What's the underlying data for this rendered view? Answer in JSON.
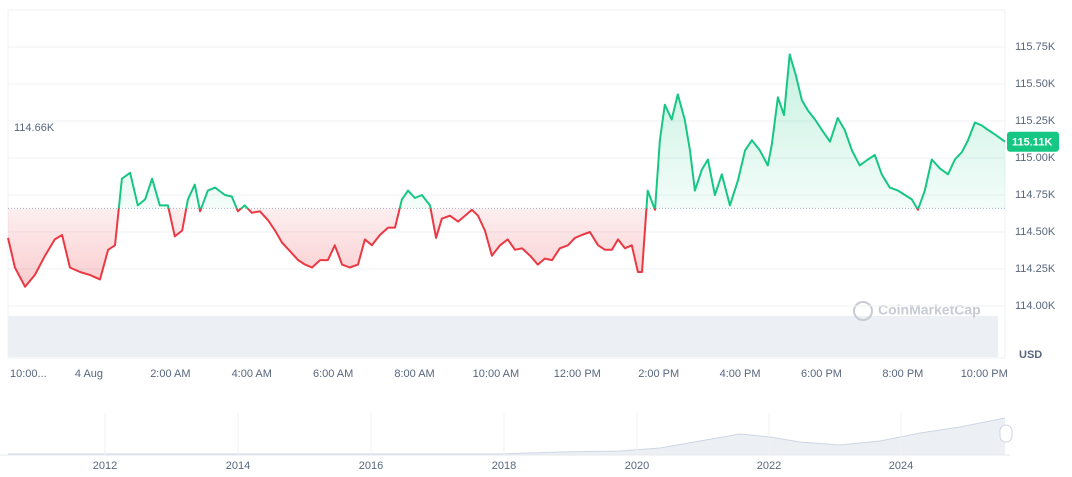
{
  "chart_data": {
    "type": "line",
    "x": [
      -1.99,
      -1.82,
      -1.57,
      -1.33,
      -1.08,
      -0.84,
      -0.66,
      -0.47,
      -0.22,
      0.02,
      0.27,
      0.47,
      0.64,
      0.81,
      1.01,
      1.2,
      1.38,
      1.55,
      1.74,
      1.94,
      2.11,
      2.29,
      2.43,
      2.6,
      2.73,
      2.92,
      3.1,
      3.34,
      3.51,
      3.66,
      3.83,
      4.0,
      4.2,
      4.4,
      4.57,
      4.74,
      4.94,
      5.14,
      5.31,
      5.48,
      5.68,
      5.87,
      6.04,
      6.22,
      6.41,
      6.61,
      6.78,
      6.95,
      7.15,
      7.35,
      7.52,
      7.69,
      7.84,
      8.01,
      8.18,
      8.38,
      8.53,
      8.67,
      8.87,
      9.07,
      9.24,
      9.41,
      9.56,
      9.73,
      9.9,
      10.1,
      10.29,
      10.47,
      10.64,
      10.84,
      11.03,
      11.2,
      11.38,
      11.57,
      11.77,
      11.94,
      12.11,
      12.31,
      12.51,
      12.68,
      12.85,
      13.0,
      13.17,
      13.34,
      13.49,
      13.59,
      13.73,
      13.91,
      14.03,
      14.15,
      14.32,
      14.47,
      14.64,
      14.77,
      14.89,
      15.06,
      15.21,
      15.38,
      15.55,
      15.75,
      15.95,
      16.12,
      16.29,
      16.49,
      16.68,
      16.78,
      16.93,
      17.08,
      17.22,
      17.37,
      17.52,
      17.67,
      17.84,
      18.01,
      18.21,
      18.4,
      18.57,
      18.75,
      18.94,
      19.14,
      19.31,
      19.48,
      19.68,
      19.88,
      20.05,
      20.22,
      20.37,
      20.54,
      20.71,
      20.91,
      21.11,
      21.28,
      21.45,
      21.6,
      21.77,
      21.94,
      22.09,
      22.26,
      22.51
    ],
    "values": [
      114460,
      114260,
      114130,
      114210,
      114340,
      114450,
      114480,
      114260,
      114230,
      114210,
      114180,
      114380,
      114410,
      114860,
      114900,
      114680,
      114720,
      114860,
      114680,
      114680,
      114470,
      114510,
      114720,
      114820,
      114640,
      114780,
      114800,
      114750,
      114740,
      114640,
      114680,
      114630,
      114640,
      114580,
      114510,
      114430,
      114370,
      114310,
      114280,
      114260,
      114310,
      114310,
      114410,
      114280,
      114260,
      114280,
      114450,
      114410,
      114480,
      114530,
      114530,
      114720,
      114780,
      114730,
      114750,
      114680,
      114460,
      114590,
      114610,
      114570,
      114610,
      114650,
      114610,
      114510,
      114340,
      114410,
      114450,
      114380,
      114390,
      114340,
      114280,
      114320,
      114310,
      114390,
      114410,
      114460,
      114480,
      114500,
      114410,
      114380,
      114380,
      114450,
      114390,
      114410,
      114230,
      114230,
      114780,
      114650,
      115120,
      115360,
      115260,
      115430,
      115260,
      115050,
      114780,
      114920,
      114990,
      114750,
      114890,
      114680,
      114850,
      115050,
      115120,
      115050,
      114950,
      115090,
      115410,
      115290,
      115700,
      115560,
      115390,
      115320,
      115260,
      115190,
      115110,
      115270,
      115190,
      115050,
      114950,
      114990,
      115020,
      114890,
      114800,
      114780,
      114750,
      114720,
      114650,
      114780,
      114990,
      114930,
      114890,
      114990,
      115040,
      115120,
      115240,
      115220,
      115190,
      115160,
      115110
    ],
    "color_up": "#16c784",
    "color_down": "#ea3943",
    "baseline": {
      "value": 114660,
      "label": "114.66K"
    },
    "current": {
      "value": 115110,
      "label": "115.11K"
    },
    "xlim": [
      -1.99,
      22.51
    ],
    "ylim": [
      114000,
      116000
    ],
    "xticks": [
      {
        "value": -2,
        "label": "10:00..."
      },
      {
        "value": 0,
        "label": "4 Aug"
      },
      {
        "value": 2,
        "label": "2:00 AM"
      },
      {
        "value": 4,
        "label": "4:00 AM"
      },
      {
        "value": 6,
        "label": "6:00 AM"
      },
      {
        "value": 8,
        "label": "8:00 AM"
      },
      {
        "value": 10,
        "label": "10:00 AM"
      },
      {
        "value": 12,
        "label": "12:00 PM"
      },
      {
        "value": 14,
        "label": "2:00 PM"
      },
      {
        "value": 16,
        "label": "4:00 PM"
      },
      {
        "value": 18,
        "label": "6:00 PM"
      },
      {
        "value": 20,
        "label": "8:00 PM"
      },
      {
        "value": 22,
        "label": "10:00 PM"
      }
    ],
    "yticks": [
      {
        "value": 114000,
        "label": "114.00K"
      },
      {
        "value": 114250,
        "label": "114.25K"
      },
      {
        "value": 114500,
        "label": "114.50K"
      },
      {
        "value": 114750,
        "label": "114.75K"
      },
      {
        "value": 115000,
        "label": "115.00K"
      },
      {
        "value": 115250,
        "label": "115.25K"
      },
      {
        "value": 115500,
        "label": "115.50K"
      },
      {
        "value": 115750,
        "label": "115.75K"
      }
    ],
    "currency": "USD",
    "grid": true
  },
  "navigator": {
    "years": [
      "2012",
      "2014",
      "2016",
      "2018",
      "2020",
      "2022",
      "2024"
    ]
  },
  "watermark": "CoinMarketCap"
}
